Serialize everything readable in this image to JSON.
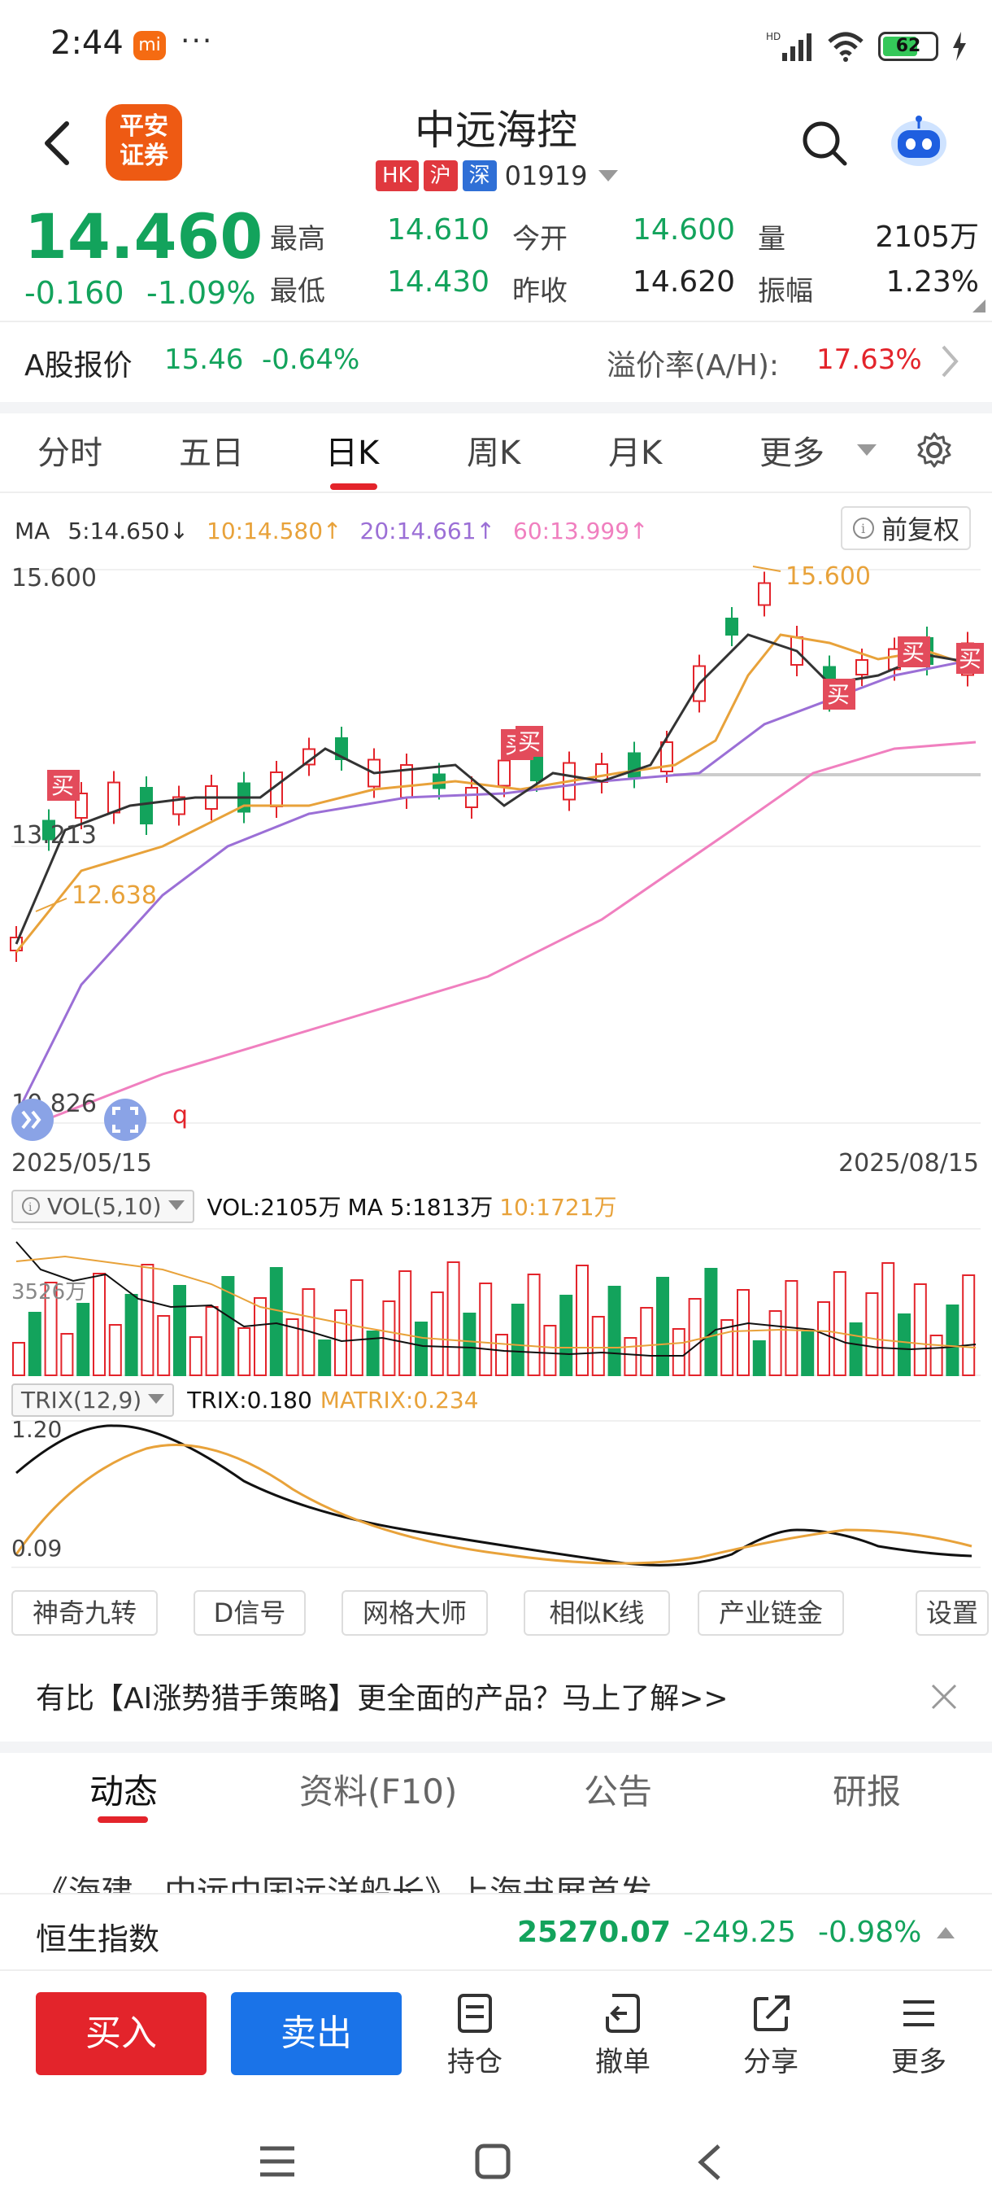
{
  "status_bar": {
    "time": "2:44",
    "mi_badge": "mi",
    "dots": "···",
    "hd": "HD",
    "battery": "62"
  },
  "header": {
    "logo_line1": "平安",
    "logo_line2": "证券",
    "title": "中远海控",
    "tags": [
      "HK",
      "沪",
      "深"
    ],
    "code": "01919"
  },
  "quote": {
    "price": "14.460",
    "change": "-0.160",
    "change_pct": "-1.09%",
    "labels": {
      "high": "最高",
      "low": "最低",
      "open": "今开",
      "prev_close": "昨收",
      "volume": "量",
      "amplitude": "振幅"
    },
    "values": {
      "high": "14.610",
      "low": "14.430",
      "open": "14.600",
      "prev_close": "14.620",
      "volume": "2105万",
      "amplitude": "1.23%"
    }
  },
  "a_share": {
    "label": "A股报价",
    "price": "15.46",
    "change_pct": "-0.64%",
    "premium_label": "溢价率(A/H):",
    "premium_value": "17.63%"
  },
  "chart_tabs": [
    "分时",
    "五日",
    "日K",
    "周K",
    "月K",
    "更多"
  ],
  "chart": {
    "ma_label": "MA",
    "ma5": "5:14.650↓",
    "ma10": "10:14.580↑",
    "ma20": "20:14.661↑",
    "ma60": "60:13.999↑",
    "adjust": "前复权",
    "y_top": "15.600",
    "y_mid": "13.213",
    "y_bottom": "10.826",
    "high_mark": "15.600",
    "low_mark": "12.638",
    "buy_marker": "买",
    "q_marker": "q",
    "date_start": "2025/05/15",
    "date_end": "2025/08/15",
    "vol_label": "VOL(5,10)",
    "vol_text": "VOL:2105万",
    "vol_ma5": "MA 5:1813万",
    "vol_ma10": "10:1721万",
    "vol_axis": "3526万",
    "trix_label": "TRIX(12,9)",
    "trix_text": "TRIX:0.180",
    "matrix_text": "MATRIX:0.234",
    "trix_top": "1.20",
    "trix_bottom": "0.09"
  },
  "tools": [
    "神奇九转",
    "D信号",
    "网格大师",
    "相似K线",
    "产业链金",
    "设置"
  ],
  "promo": {
    "text": "有比【AI涨势猎手策略】更全面的产品？马上了解>>"
  },
  "section_tabs": [
    "动态",
    "资料(F10)",
    "公告",
    "研报"
  ],
  "news_peek": "《海建...中远中国远洋船长》上海书展首发",
  "ticker": {
    "name": "恒生指数",
    "value": "25270.07",
    "change": "-249.25",
    "change_pct": "-0.98%"
  },
  "bottom_bar": {
    "buy": "买入",
    "sell": "卖出",
    "actions": [
      "持仓",
      "撤单",
      "分享",
      "更多"
    ]
  },
  "colors": {
    "up": "#e3242b",
    "down": "#13a35c",
    "accent": "#e3242b",
    "blue": "#1a73e8",
    "ma5": "#333333",
    "ma10": "#e8a23a",
    "ma20": "#9b6fd6",
    "ma60": "#f07fbf"
  }
}
